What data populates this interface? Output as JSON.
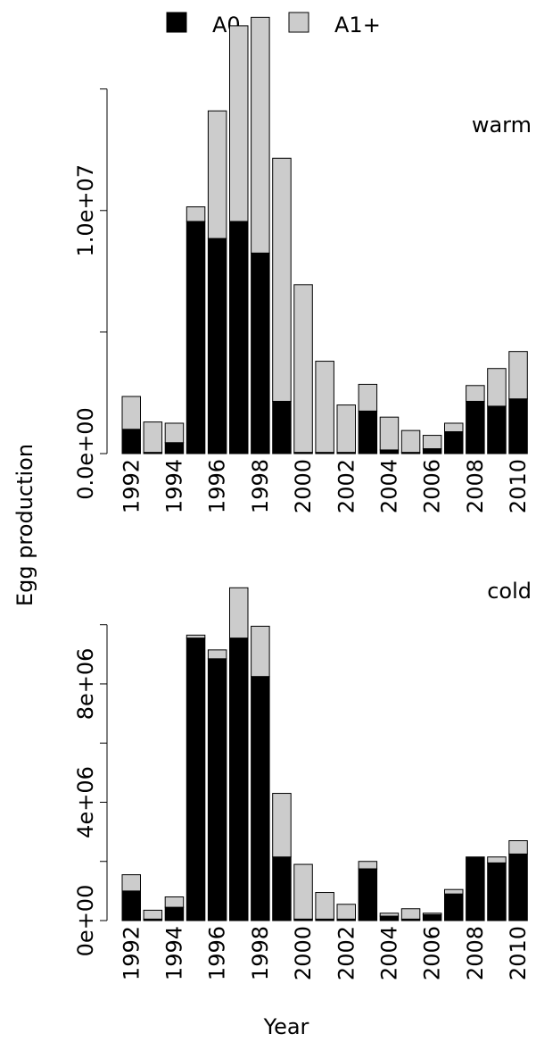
{
  "legend": {
    "placement": "top-center",
    "items": [
      {
        "label": "A0",
        "color": "#000000"
      },
      {
        "label": "A1+",
        "color": "#cccccc"
      }
    ]
  },
  "xlabel": "Year",
  "ylabel": "Egg production",
  "chart_data": [
    {
      "type": "bar",
      "stacked": true,
      "panel_label": "warm",
      "categories": [
        "1992",
        "1993",
        "1994",
        "1995",
        "1996",
        "1997",
        "1998",
        "1999",
        "2000",
        "2001",
        "2002",
        "2003",
        "2004",
        "2005",
        "2006",
        "2007",
        "2008",
        "2009",
        "2010"
      ],
      "x_tick_labels": [
        "1992",
        "1994",
        "1996",
        "1998",
        "2000",
        "2002",
        "2004",
        "2006",
        "2008",
        "2010"
      ],
      "series": [
        {
          "name": "A0",
          "color": "#000000",
          "values": [
            1000000,
            50000,
            450000,
            9550000,
            8850000,
            9550000,
            8250000,
            2150000,
            50000,
            50000,
            50000,
            1750000,
            150000,
            50000,
            200000,
            900000,
            2150000,
            1950000,
            2250000
          ]
        },
        {
          "name": "A1+",
          "color": "#cccccc",
          "values": [
            1350000,
            1250000,
            800000,
            600000,
            5250000,
            8050000,
            9700000,
            10000000,
            6900000,
            3750000,
            1950000,
            1100000,
            1350000,
            900000,
            550000,
            350000,
            650000,
            1550000,
            1950000
          ]
        }
      ],
      "yticks": [
        0,
        5000000,
        10000000,
        15000000
      ],
      "ytick_labels": [
        "0.0e+00",
        "",
        "1.0e+07",
        ""
      ],
      "ylim": [
        0,
        18000000
      ]
    },
    {
      "type": "bar",
      "stacked": true,
      "panel_label": "cold",
      "categories": [
        "1992",
        "1993",
        "1994",
        "1995",
        "1996",
        "1997",
        "1998",
        "1999",
        "2000",
        "2001",
        "2002",
        "2003",
        "2004",
        "2005",
        "2006",
        "2007",
        "2008",
        "2009",
        "2010"
      ],
      "x_tick_labels": [
        "1992",
        "1994",
        "1996",
        "1998",
        "2000",
        "2002",
        "2004",
        "2006",
        "2008",
        "2010"
      ],
      "series": [
        {
          "name": "A0",
          "color": "#000000",
          "values": [
            1000000,
            50000,
            450000,
            9550000,
            8850000,
            9550000,
            8250000,
            2150000,
            50000,
            50000,
            50000,
            1750000,
            150000,
            50000,
            200000,
            900000,
            2150000,
            1950000,
            2250000
          ]
        },
        {
          "name": "A1+",
          "color": "#cccccc",
          "values": [
            550000,
            300000,
            350000,
            100000,
            300000,
            1700000,
            1700000,
            2150000,
            1850000,
            900000,
            500000,
            250000,
            100000,
            350000,
            50000,
            150000,
            0,
            200000,
            450000
          ]
        }
      ],
      "yticks": [
        0,
        2000000,
        4000000,
        6000000,
        8000000,
        10000000
      ],
      "ytick_labels": [
        "0e+00",
        "",
        "4e+06",
        "",
        "8e+06",
        ""
      ],
      "ylim": [
        0,
        11500000
      ]
    }
  ]
}
